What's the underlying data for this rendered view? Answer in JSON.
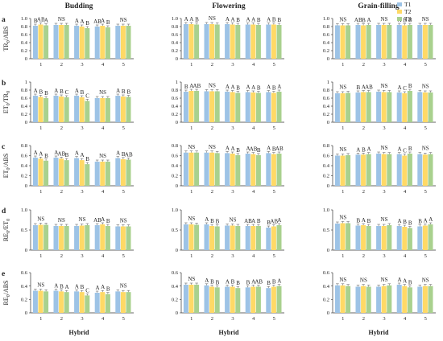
{
  "colors": {
    "T1": "#9dc3e6",
    "T2": "#ffd966",
    "T3": "#a9d18e",
    "error": "#555555",
    "axis": "#333333"
  },
  "chart_data": {
    "type": "bar",
    "layout": "5 rows x 3 columns of grouped bar panels",
    "column_titles": [
      "Budding",
      "Flowering",
      "Grain-filling"
    ],
    "row_labels": [
      "a",
      "b",
      "c",
      "d",
      "e"
    ],
    "row_ylabels": [
      {
        "base": "TR",
        "sub": "0",
        "rest": "/ABS"
      },
      {
        "base": "ET",
        "sub": "0",
        "rest": "/TR",
        "sub2": "0"
      },
      {
        "base": "ET",
        "sub": "0",
        "rest": "/ABS"
      },
      {
        "base": "RE",
        "sub": "0",
        "rest": "/ET",
        "sub2": "0"
      },
      {
        "base": "RE",
        "sub": "0",
        "rest": "/ABS"
      }
    ],
    "yticks": [
      [
        "0",
        "0.2",
        "0.4",
        "0.6",
        "0.8",
        "1.0"
      ],
      [
        "0",
        "0.2",
        "0.4",
        "0.6",
        "0.8",
        "1"
      ],
      [
        "0",
        "0.2",
        "0.4",
        "0.6",
        "0.8"
      ],
      [
        "0",
        "0.5",
        "1.0"
      ],
      [
        "0",
        "0.2",
        "0.4",
        "0.6"
      ]
    ],
    "ymax": [
      1.0,
      1.0,
      0.8,
      1.0,
      0.6
    ],
    "categories": [
      "1",
      "2",
      "3",
      "4",
      "5"
    ],
    "xlabel": "Hybrid",
    "legend": {
      "position": "top-right of Grain-filling panel",
      "entries": [
        "T1",
        "T2",
        "T3"
      ]
    },
    "panels": [
      [
        {
          "values": [
            [
              0.82,
              0.85,
              0.83
            ],
            [
              0.84,
              0.84,
              0.84
            ],
            [
              0.82,
              0.8,
              0.76
            ],
            [
              0.8,
              0.82,
              0.78
            ],
            [
              0.82,
              0.82,
              0.82
            ]
          ],
          "labels": [
            [
              "B",
              "AB",
              "A"
            ],
            [
              "NS"
            ],
            [
              "A",
              "A",
              "B"
            ],
            [
              "AB",
              "A",
              "B"
            ],
            [
              "NS"
            ]
          ]
        },
        {
          "values": [
            [
              0.86,
              0.86,
              0.85
            ],
            [
              0.86,
              0.86,
              0.85
            ],
            [
              0.86,
              0.85,
              0.84
            ],
            [
              0.85,
              0.85,
              0.84
            ],
            [
              0.85,
              0.85,
              0.84
            ]
          ],
          "labels": [
            [
              "A",
              "A",
              "B"
            ],
            [
              "NS"
            ],
            [
              "A",
              "A",
              "B"
            ],
            [
              "A",
              "A",
              "B"
            ],
            [
              "A",
              "B",
              "B"
            ]
          ]
        },
        {
          "values": [
            [
              0.83,
              0.83,
              0.83
            ],
            [
              0.84,
              0.83,
              0.84
            ],
            [
              0.84,
              0.84,
              0.84
            ],
            [
              0.84,
              0.83,
              0.84
            ],
            [
              0.84,
              0.84,
              0.84
            ]
          ],
          "labels": [
            [
              "NS"
            ],
            [
              "AB",
              "B",
              "A"
            ],
            [
              "NS"
            ],
            [
              "A",
              "B",
              "B"
            ],
            [
              "NS"
            ]
          ]
        }
      ],
      [
        {
          "values": [
            [
              0.66,
              0.63,
              0.6
            ],
            [
              0.66,
              0.64,
              0.62
            ],
            [
              0.66,
              0.62,
              0.53
            ],
            [
              0.6,
              0.6,
              0.6
            ],
            [
              0.66,
              0.64,
              0.63
            ]
          ],
          "labels": [
            [
              "A",
              "B",
              "B"
            ],
            [
              "A",
              "B",
              "C"
            ],
            [
              "A",
              "B",
              "C"
            ],
            [
              "NS"
            ],
            [
              "A",
              "B",
              "B"
            ]
          ]
        },
        {
          "values": [
            [
              0.76,
              0.78,
              0.78
            ],
            [
              0.77,
              0.77,
              0.77
            ],
            [
              0.76,
              0.75,
              0.73
            ],
            [
              0.75,
              0.74,
              0.73
            ],
            [
              0.75,
              0.73,
              0.76
            ]
          ],
          "labels": [
            [
              "B",
              "A",
              "AB"
            ],
            [
              "NS"
            ],
            [
              "A",
              "A",
              "B"
            ],
            [
              "A",
              "A",
              "B"
            ],
            [
              "A",
              "B",
              "A"
            ]
          ]
        },
        {
          "values": [
            [
              0.72,
              0.72,
              0.73
            ],
            [
              0.74,
              0.75,
              0.75
            ],
            [
              0.76,
              0.75,
              0.75
            ],
            [
              0.74,
              0.72,
              0.78
            ],
            [
              0.75,
              0.74,
              0.74
            ]
          ],
          "labels": [
            [
              "NS"
            ],
            [
              "B",
              "A",
              "AB"
            ],
            [
              "NS"
            ],
            [
              "A",
              "C",
              "B"
            ],
            [
              "NS"
            ]
          ]
        }
      ],
      [
        {
          "values": [
            [
              0.56,
              0.54,
              0.5
            ],
            [
              0.56,
              0.54,
              0.51
            ],
            [
              0.55,
              0.51,
              0.43
            ],
            [
              0.48,
              0.48,
              0.48
            ],
            [
              0.55,
              0.53,
              0.52
            ]
          ],
          "labels": [
            [
              "A",
              "A",
              "B"
            ],
            [
              "A",
              "AB",
              "B"
            ],
            [
              "A",
              "A",
              "B"
            ],
            [
              "NS"
            ],
            [
              "A",
              "B",
              "AB"
            ]
          ]
        },
        {
          "values": [
            [
              0.66,
              0.66,
              0.66
            ],
            [
              0.66,
              0.66,
              0.65
            ],
            [
              0.65,
              0.64,
              0.61
            ],
            [
              0.64,
              0.63,
              0.61
            ],
            [
              0.65,
              0.63,
              0.64
            ]
          ],
          "labels": [
            [
              "NS"
            ],
            [
              "NS"
            ],
            [
              "A",
              "A",
              "B"
            ],
            [
              "A",
              "AB",
              "B"
            ],
            [
              "A",
              "B",
              "AB"
            ]
          ]
        },
        {
          "values": [
            [
              0.6,
              0.6,
              0.61
            ],
            [
              0.62,
              0.62,
              0.63
            ],
            [
              0.64,
              0.63,
              0.63
            ],
            [
              0.63,
              0.6,
              0.64
            ],
            [
              0.63,
              0.62,
              0.63
            ]
          ],
          "labels": [
            [
              "NS"
            ],
            [
              "A",
              "B",
              "A"
            ],
            [
              "NS"
            ],
            [
              "A",
              "C",
              "B"
            ],
            [
              "NS"
            ]
          ]
        }
      ],
      [
        {
          "values": [
            [
              0.62,
              0.63,
              0.63
            ],
            [
              0.6,
              0.6,
              0.6
            ],
            [
              0.6,
              0.61,
              0.62
            ],
            [
              0.62,
              0.64,
              0.6
            ],
            [
              0.59,
              0.59,
              0.59
            ]
          ],
          "labels": [
            [
              "NS"
            ],
            [
              "NS"
            ],
            [
              "NS"
            ],
            [
              "AB",
              "A",
              "B"
            ],
            [
              "NS"
            ]
          ]
        },
        {
          "values": [
            [
              0.64,
              0.64,
              0.63
            ],
            [
              0.64,
              0.6,
              0.59
            ],
            [
              0.61,
              0.61,
              0.6
            ],
            [
              0.6,
              0.6,
              0.6
            ],
            [
              0.56,
              0.59,
              0.62
            ]
          ],
          "labels": [
            [
              "NS"
            ],
            [
              "A",
              "B",
              "B"
            ],
            [
              "NS"
            ],
            [
              "AB",
              "A",
              "B"
            ],
            [
              "B",
              "AB",
              "A"
            ]
          ]
        },
        {
          "values": [
            [
              0.66,
              0.67,
              0.67
            ],
            [
              0.61,
              0.62,
              0.6
            ],
            [
              0.6,
              0.6,
              0.62
            ],
            [
              0.6,
              0.58,
              0.55
            ],
            [
              0.59,
              0.61,
              0.64
            ]
          ],
          "labels": [
            [
              "NS"
            ],
            [
              "B",
              "A",
              "B"
            ],
            [
              "NS"
            ],
            [
              "A",
              "B",
              "B"
            ],
            [
              "B",
              "A",
              "A"
            ]
          ]
        }
      ],
      [
        {
          "values": [
            [
              0.33,
              0.33,
              0.32
            ],
            [
              0.33,
              0.32,
              0.31
            ],
            [
              0.32,
              0.31,
              0.26
            ],
            [
              0.3,
              0.31,
              0.28
            ],
            [
              0.32,
              0.31,
              0.31
            ]
          ],
          "labels": [
            [
              "NS"
            ],
            [
              "A",
              "B",
              "A"
            ],
            [
              "A",
              "B",
              "C"
            ],
            [
              "A",
              "A",
              "B"
            ],
            [
              "NS"
            ]
          ]
        },
        {
          "values": [
            [
              0.42,
              0.42,
              0.42
            ],
            [
              0.41,
              0.39,
              0.38
            ],
            [
              0.39,
              0.39,
              0.37
            ],
            [
              0.38,
              0.39,
              0.39
            ],
            [
              0.37,
              0.39,
              0.4
            ]
          ],
          "labels": [
            [
              "NS"
            ],
            [
              "A",
              "B",
              "B"
            ],
            [
              "A",
              "B",
              "B"
            ],
            [
              "B",
              "A",
              "AB"
            ],
            [
              "B",
              "B",
              "A"
            ]
          ]
        },
        {
          "values": [
            [
              0.41,
              0.41,
              0.4
            ],
            [
              0.39,
              0.4,
              0.39
            ],
            [
              0.39,
              0.4,
              0.41
            ],
            [
              0.42,
              0.4,
              0.38
            ],
            [
              0.39,
              0.4,
              0.4
            ]
          ],
          "labels": [
            [
              "NS"
            ],
            [
              "NS"
            ],
            [
              "NS"
            ],
            [
              "A",
              "A",
              "B"
            ],
            [
              "NS"
            ]
          ]
        }
      ]
    ]
  }
}
